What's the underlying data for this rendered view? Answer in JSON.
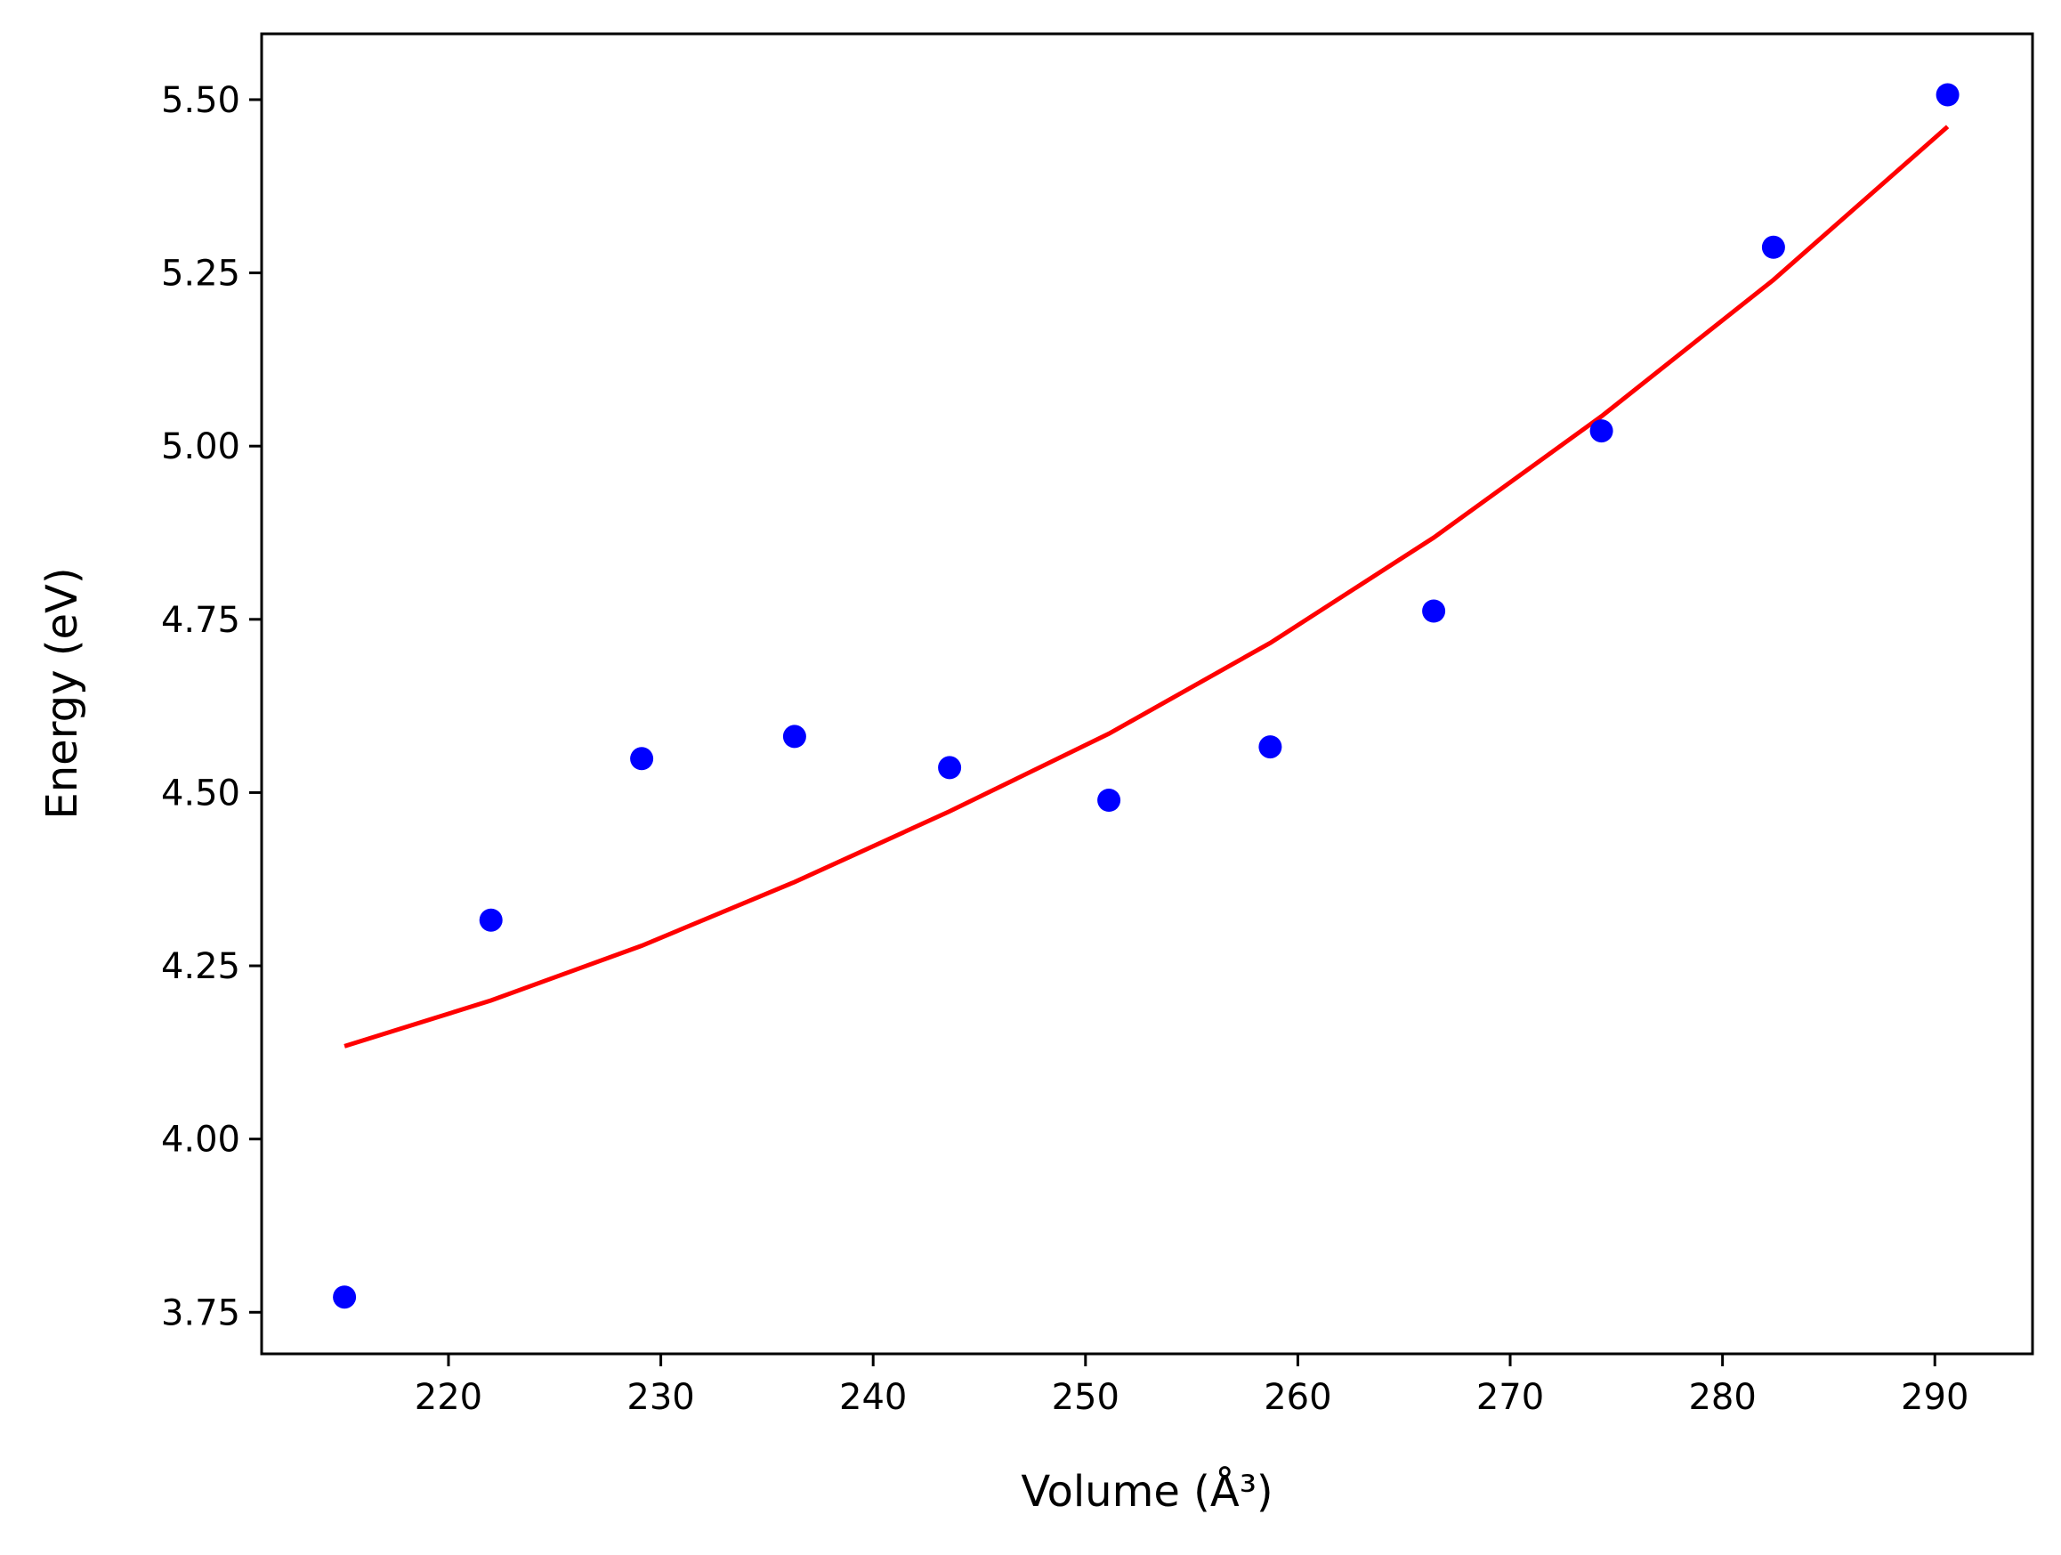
{
  "chart_data": {
    "type": "scatter",
    "xlabel": "Volume (Å³)",
    "ylabel": "Energy (eV)",
    "xlim": [
      211.2,
      294.6
    ],
    "ylim": [
      3.69,
      5.595
    ],
    "grid": false,
    "xticks": [
      220,
      230,
      240,
      250,
      260,
      270,
      280,
      290
    ],
    "yticks": [
      3.75,
      4.0,
      4.25,
      4.5,
      4.75,
      5.0,
      5.25,
      5.5
    ],
    "xtick_labels": [
      "220",
      "230",
      "240",
      "250",
      "260",
      "270",
      "280",
      "290"
    ],
    "ytick_labels": [
      "3.75",
      "4.00",
      "4.25",
      "4.50",
      "4.75",
      "5.00",
      "5.25",
      "5.50"
    ],
    "series": [
      {
        "kind": "scatter",
        "color": "#0000ff",
        "x": [
          215.1,
          222.0,
          229.1,
          236.3,
          243.6,
          251.1,
          258.7,
          266.4,
          274.3,
          282.4,
          290.6
        ],
        "y": [
          3.772,
          4.316,
          4.549,
          4.581,
          4.536,
          4.489,
          4.566,
          4.762,
          5.022,
          5.287,
          5.507
        ]
      },
      {
        "kind": "line",
        "color": "#ff0000",
        "x": [
          215.1,
          222.0,
          229.1,
          236.3,
          243.6,
          251.1,
          258.7,
          266.4,
          274.3,
          282.4,
          290.6
        ],
        "y": [
          4.134,
          4.2,
          4.279,
          4.371,
          4.473,
          4.585,
          4.716,
          4.868,
          5.043,
          5.24,
          5.461
        ]
      }
    ]
  }
}
